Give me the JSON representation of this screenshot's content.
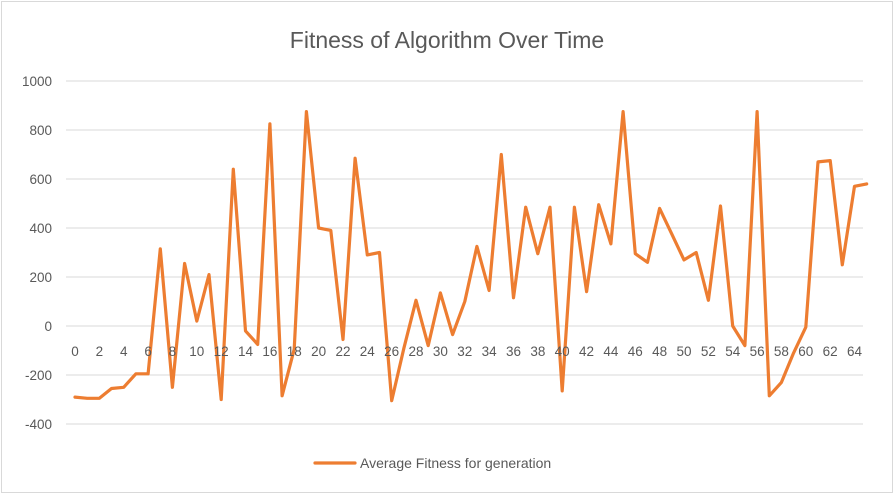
{
  "chart_data": {
    "type": "line",
    "title": "Fitness of Algorithm Over Time",
    "xlabel": "",
    "ylabel": "",
    "ylim": [
      -400,
      1000
    ],
    "y_ticks": [
      "-400",
      "-200",
      "0",
      "200",
      "400",
      "600",
      "800",
      "1000"
    ],
    "x_ticks": [
      "0",
      "2",
      "4",
      "6",
      "8",
      "10",
      "12",
      "14",
      "16",
      "18",
      "20",
      "22",
      "24",
      "26",
      "28",
      "30",
      "32",
      "34",
      "36",
      "38",
      "40",
      "42",
      "44",
      "46",
      "48",
      "50",
      "52",
      "54",
      "56",
      "58",
      "60",
      "62",
      "64"
    ],
    "grid": true,
    "legend_position": "bottom",
    "series": [
      {
        "name": "Average Fitness for generation",
        "color": "#ed7d31",
        "x": [
          0,
          1,
          2,
          3,
          4,
          5,
          6,
          7,
          8,
          9,
          10,
          11,
          12,
          13,
          14,
          15,
          16,
          17,
          18,
          19,
          20,
          21,
          22,
          23,
          24,
          25,
          26,
          27,
          28,
          29,
          30,
          31,
          32,
          33,
          34,
          35,
          36,
          37,
          38,
          39,
          40,
          41,
          42,
          43,
          44,
          45,
          46,
          47,
          48,
          49,
          50,
          51,
          52,
          53,
          54,
          55,
          56,
          57,
          58,
          59,
          60,
          61,
          62,
          63,
          64,
          65
        ],
        "values": [
          -290,
          -295,
          -295,
          -255,
          -250,
          -195,
          -195,
          315,
          -250,
          255,
          20,
          210,
          -300,
          640,
          -20,
          -75,
          825,
          -285,
          -95,
          875,
          400,
          390,
          -55,
          685,
          290,
          300,
          -305,
          -90,
          105,
          -80,
          135,
          -35,
          100,
          325,
          145,
          700,
          115,
          485,
          295,
          485,
          -265,
          485,
          140,
          495,
          335,
          875,
          295,
          260,
          480,
          375,
          270,
          300,
          105,
          490,
          0,
          -80,
          875,
          -285,
          -230,
          -110,
          -5,
          670,
          675,
          250,
          570,
          580
        ]
      }
    ]
  }
}
